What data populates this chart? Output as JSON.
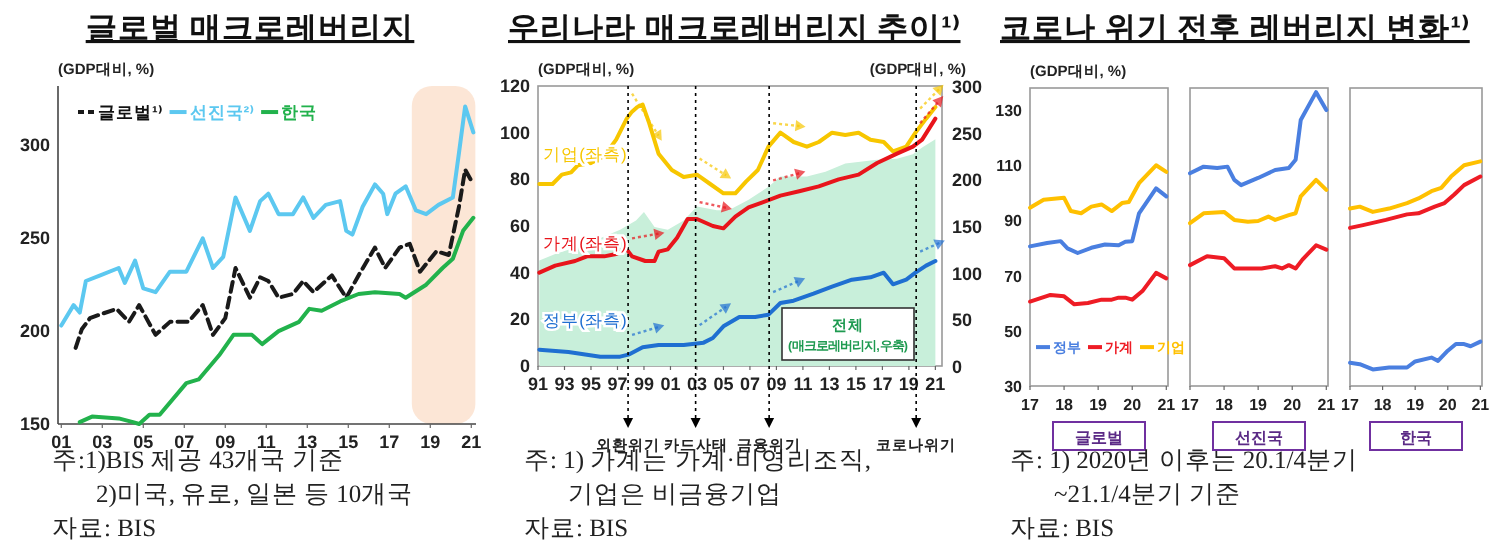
{
  "chart_data": [
    {
      "type": "line",
      "title": "글로벌  매크로레버리지",
      "ylabel": "(GDP대비, %)",
      "legend": "top left",
      "xlim": [
        2000.84,
        2021.23
      ],
      "ylim": [
        150,
        332
      ],
      "xticks": [
        {
          "value": 2001,
          "label": "01"
        },
        {
          "value": 2003,
          "label": "03"
        },
        {
          "value": 2005,
          "label": "05"
        },
        {
          "value": 2007,
          "label": "07"
        },
        {
          "value": 2009,
          "label": "09"
        },
        {
          "value": 2011,
          "label": "11"
        },
        {
          "value": 2013,
          "label": "13"
        },
        {
          "value": 2015,
          "label": "15"
        },
        {
          "value": 2017,
          "label": "17"
        },
        {
          "value": 2019,
          "label": "19"
        },
        {
          "value": 2021,
          "label": "21"
        }
      ],
      "yticks": [
        150,
        200,
        250,
        300
      ],
      "bands": [
        {
          "axis": "x",
          "from": 2018.1,
          "to": 2021.2,
          "color": "#fbe0cc"
        }
      ],
      "series": [
        {
          "name": "글로벌¹⁾",
          "color": "#1a1a1a",
          "line_style": "dashed",
          "x": [
            2001.7,
            2002,
            2002.4,
            2002.9,
            2003.7,
            2004.3,
            2004.8,
            2005.6,
            2006.3,
            2007.2,
            2007.9,
            2008.4,
            2009,
            2009.5,
            2010.2,
            2010.7,
            2011.1,
            2011.6,
            2012.3,
            2012.8,
            2013.3,
            2014.2,
            2014.9,
            2015.5,
            2016.3,
            2016.8,
            2017.5,
            2018,
            2018.5,
            2019.3,
            2019.9,
            2020.4,
            2020.7,
            2021.1
          ],
          "values": [
            191,
            201,
            207,
            209,
            212,
            205,
            214,
            198,
            205,
            205,
            214,
            198,
            207,
            234,
            218,
            229,
            227,
            218,
            220,
            227,
            221,
            230,
            218,
            230,
            245,
            234,
            245,
            247,
            232,
            243,
            241,
            267,
            287,
            279
          ]
        },
        {
          "name": "선진국²⁾",
          "color": "#5cc8f0",
          "x": [
            2001,
            2001.6,
            2001.9,
            2002.2,
            2002.9,
            2003.8,
            2004.1,
            2004.6,
            2005,
            2005.6,
            2006.3,
            2007.1,
            2007.9,
            2008.4,
            2008.9,
            2009.5,
            2010.2,
            2010.7,
            2011.1,
            2011.6,
            2012.3,
            2012.8,
            2013.3,
            2013.9,
            2014.6,
            2014.9,
            2015.2,
            2015.7,
            2016.3,
            2016.7,
            2016.9,
            2017.3,
            2017.8,
            2018.3,
            2018.8,
            2019.4,
            2020.1,
            2020.4,
            2020.7,
            2021.1
          ],
          "values": [
            203,
            214,
            210,
            227,
            230,
            234,
            226,
            238,
            223,
            221,
            232,
            232,
            250,
            234,
            240,
            272,
            254,
            270,
            274,
            263,
            263,
            272,
            261,
            268,
            270,
            254,
            252,
            267,
            279,
            274,
            263,
            274,
            278,
            265,
            263,
            268,
            272,
            296,
            321,
            307
          ]
        },
        {
          "name": "한국",
          "color": "#22b24c",
          "x": [
            2001.9,
            2002.5,
            2003.8,
            2004.5,
            2004.8,
            2005.3,
            2005.8,
            2007.1,
            2007.7,
            2008.7,
            2009.4,
            2010.3,
            2010.8,
            2011.6,
            2012.6,
            2013.1,
            2013.7,
            2014.6,
            2015.5,
            2016.3,
            2017.5,
            2017.8,
            2018.8,
            2019.6,
            2020.1,
            2020.6,
            2021.1
          ],
          "values": [
            151,
            154,
            153,
            151,
            150,
            155,
            155,
            172,
            174,
            187,
            198,
            198,
            193,
            200,
            205,
            212,
            211,
            216,
            220,
            221,
            220,
            218,
            225,
            234,
            239,
            254,
            261
          ]
        }
      ],
      "annotations": [
        "주:1)BIS 제공 43개국 기준",
        "2)미국, 유로, 일본 등 10개국",
        "자료: BIS"
      ]
    },
    {
      "type": "line",
      "title": "우리나라 매크로레버리지 추이¹⁾",
      "ylabel": "(GDP대비, %)",
      "y2label": "(GDP대비, %)",
      "xlim": [
        1991,
        2021.5
      ],
      "ylim": [
        0,
        120
      ],
      "y2lim": [
        0,
        300
      ],
      "xticks": [
        {
          "value": 1991,
          "label": "91"
        },
        {
          "value": 1993,
          "label": "93"
        },
        {
          "value": 1995,
          "label": "95"
        },
        {
          "value": 1997,
          "label": "97"
        },
        {
          "value": 1999,
          "label": "99"
        },
        {
          "value": 2001,
          "label": "01"
        },
        {
          "value": 2003,
          "label": "03"
        },
        {
          "value": 2005,
          "label": "05"
        },
        {
          "value": 2007,
          "label": "07"
        },
        {
          "value": 2009,
          "label": "09"
        },
        {
          "value": 2011,
          "label": "11"
        },
        {
          "value": 2013,
          "label": "13"
        },
        {
          "value": 2015,
          "label": "15"
        },
        {
          "value": 2017,
          "label": "17"
        },
        {
          "value": 2019,
          "label": "19"
        },
        {
          "value": 2021,
          "label": "21"
        }
      ],
      "yticks": [
        0,
        20,
        40,
        60,
        80,
        100,
        120
      ],
      "y2ticks": [
        0,
        50,
        100,
        150,
        200,
        250,
        300
      ],
      "ref_lines": [
        {
          "axis": "x",
          "value": 1997.8,
          "label": "외환위기",
          "color": "#000000",
          "line_style": "dotted"
        },
        {
          "axis": "x",
          "value": 2002.9,
          "label": "카드사태",
          "color": "#000000",
          "line_style": "dotted"
        },
        {
          "axis": "x",
          "value": 2008.45,
          "label": "금융위기",
          "color": "#000000",
          "line_style": "dotted"
        },
        {
          "axis": "x",
          "value": 2019.55,
          "label": "코로나위기",
          "color": "#000000",
          "line_style": "dotted"
        }
      ],
      "series": [
        {
          "name": "전체 (매크로레버리지,우축)",
          "type": "area",
          "axis": "y2",
          "color": "#c8efda",
          "x": [
            1991.1,
            1992.3,
            1994.7,
            1997.2,
            1998.4,
            1999,
            1999.8,
            2000.8,
            2002,
            2003,
            2004.5,
            2005.4,
            2006.9,
            2008.4,
            2009.3,
            2011.3,
            2012.7,
            2014.2,
            2016.6,
            2018.1,
            2019.3,
            2020,
            2021
          ],
          "values": [
            113,
            120,
            131,
            146,
            156,
            165,
            149,
            146,
            156,
            171,
            167,
            167,
            178,
            192,
            203,
            203,
            208,
            217,
            221,
            222,
            227,
            234,
            243
          ]
        },
        {
          "name": "기업(좌측)",
          "color": "#f7c600",
          "x": [
            1991.1,
            1992.1,
            1992.8,
            1993.5,
            1994,
            1995,
            1996,
            1996.9,
            1997.7,
            1998.1,
            1998.5,
            1998.9,
            1999.4,
            2000.1,
            2001.1,
            2002,
            2003,
            2004,
            2005,
            2005.9,
            2006.7,
            2007.6,
            2008.4,
            2009.3,
            2010.3,
            2011.3,
            2012.2,
            2013.2,
            2014.2,
            2015.2,
            2016.1,
            2017.1,
            2017.8,
            2018.8,
            2019.5,
            2020.3,
            2021
          ],
          "values": [
            78,
            78,
            82,
            83,
            86,
            87,
            90,
            97,
            106,
            109,
            111,
            112,
            104,
            91,
            84,
            81,
            82,
            78,
            74,
            74,
            79,
            84,
            94,
            100,
            96,
            94,
            96,
            100,
            99,
            100,
            97,
            96,
            92,
            94,
            100,
            106,
            111
          ]
        },
        {
          "name": "가계(좌측)",
          "color": "#e8141b",
          "x": [
            1991.1,
            1992.3,
            1993.8,
            1994.7,
            1996,
            1996.9,
            1997.7,
            1998.1,
            1999.1,
            1999.8,
            2000.1,
            2000.8,
            2001.5,
            2002.3,
            2003,
            2004.2,
            2005,
            2005.9,
            2006.9,
            2007.9,
            2009.3,
            2010.8,
            2012.2,
            2013.7,
            2015.2,
            2016.6,
            2018.1,
            2019.3,
            2020,
            2021
          ],
          "values": [
            40,
            43,
            45,
            47,
            47,
            48,
            50,
            47,
            45,
            45,
            49,
            50,
            55,
            63,
            63,
            60,
            59,
            64,
            68,
            70,
            73,
            75,
            77,
            80,
            82,
            87,
            91,
            94,
            97,
            106
          ]
        },
        {
          "name": "정부(좌측)",
          "color": "#1f6fd1",
          "x": [
            1991.1,
            1993.3,
            1995.7,
            1997.2,
            1997.9,
            1998.9,
            2000.1,
            2002,
            2003.5,
            2004.2,
            2005,
            2006.2,
            2007.4,
            2008.4,
            2009.3,
            2010.3,
            2011.8,
            2013.2,
            2014.7,
            2016.1,
            2017.1,
            2017.8,
            2018.8,
            2019.5,
            2020.3,
            2021
          ],
          "values": [
            7,
            6,
            4,
            4,
            5,
            8,
            9,
            9,
            10,
            12,
            17,
            21,
            21,
            22,
            27,
            28,
            31,
            34,
            37,
            38,
            40,
            35,
            37,
            40,
            43,
            45
          ]
        }
      ],
      "annotations": [
        "주: 1) 가계는 가계·비영리조직,",
        "기업은 비금융기업",
        "자료: BIS"
      ]
    },
    {
      "type": "line",
      "title": "코로나 위기 전후 레버리지 변화¹⁾",
      "ylabel": "(GDP대비, %)",
      "xlabel": "글로벌",
      "legend": "bottom",
      "xlim": [
        2017,
        2021.05
      ],
      "ylim": [
        30,
        138
      ],
      "xticks": [
        {
          "value": 2017,
          "label": "17"
        },
        {
          "value": 2018,
          "label": "18"
        },
        {
          "value": 2019,
          "label": "19"
        },
        {
          "value": 2020,
          "label": "20"
        },
        {
          "value": 2021,
          "label": "21"
        }
      ],
      "yticks": [
        30,
        50,
        70,
        90,
        110,
        130
      ],
      "series": [
        {
          "name": "정부",
          "color": "#4a7fe0",
          "x": [
            2017,
            2017.5,
            2017.9,
            2018.1,
            2018.4,
            2018.8,
            2019.2,
            2019.6,
            2019.8,
            2020,
            2020.2,
            2020.7,
            2021
          ],
          "values": [
            80.6,
            81.8,
            82.5,
            79.9,
            78.2,
            80.1,
            81.3,
            81,
            82.3,
            82.5,
            92.6,
            101.6,
            98.7
          ]
        },
        {
          "name": "가계",
          "color": "#ee1c25",
          "x": [
            2017,
            2017.6,
            2018,
            2018.3,
            2018.7,
            2019.1,
            2019.4,
            2019.6,
            2019.8,
            2020,
            2020.3,
            2020.7,
            2021
          ],
          "values": [
            60.6,
            63,
            62.5,
            59.6,
            60.1,
            61.3,
            61.3,
            62,
            62,
            61.3,
            64.4,
            71,
            69
          ]
        },
        {
          "name": "기업",
          "color": "#ffc000",
          "x": [
            2017,
            2017.4,
            2018,
            2018.2,
            2018.5,
            2018.8,
            2019.1,
            2019.4,
            2019.7,
            2019.9,
            2020.2,
            2020.7,
            2021
          ],
          "values": [
            94.6,
            97.5,
            98.2,
            93.4,
            92.6,
            95,
            95.8,
            93.4,
            96.3,
            96.7,
            103.5,
            110,
            107.6
          ]
        }
      ],
      "annotations": [
        "주: 1)  2020년 이후는 20.1/4분기",
        "~21.1/4분기 기준",
        "자료: BIS"
      ]
    },
    {
      "type": "line",
      "xlabel": "선진국",
      "tick_labels": "x",
      "xlim": [
        2017,
        2021.05
      ],
      "ylim": [
        30,
        138
      ],
      "xticks": [
        {
          "value": 2017,
          "label": "17"
        },
        {
          "value": 2018,
          "label": "18"
        },
        {
          "value": 2019,
          "label": "19"
        },
        {
          "value": 2020,
          "label": "20"
        },
        {
          "value": 2021,
          "label": "21"
        }
      ],
      "yticks": [
        30,
        50,
        70,
        90,
        110,
        130
      ],
      "series": [
        {
          "color": "#4a7fe0",
          "x": [
            2017,
            2017.4,
            2017.8,
            2018.1,
            2018.3,
            2018.5,
            2019,
            2019.5,
            2019.9,
            2020.1,
            2020.25,
            2020.7,
            2021
          ],
          "values": [
            107.1,
            109.5,
            109,
            109.5,
            104.7,
            102.8,
            105.4,
            108.3,
            109,
            112,
            126.4,
            136.5,
            130
          ]
        },
        {
          "color": "#ee1c25",
          "x": [
            2017,
            2017.5,
            2018,
            2018.3,
            2019.1,
            2019.5,
            2019.7,
            2019.9,
            2020.1,
            2020.3,
            2020.7,
            2021
          ],
          "values": [
            73.8,
            77,
            76.3,
            72.6,
            72.6,
            73.4,
            72.6,
            73.8,
            72.6,
            75.8,
            81,
            79.4
          ]
        },
        {
          "color": "#ffc000",
          "x": [
            2017,
            2017.4,
            2018,
            2018.3,
            2018.7,
            2019,
            2019.3,
            2019.5,
            2019.9,
            2020.1,
            2020.25,
            2020.7,
            2021
          ],
          "values": [
            89,
            92.6,
            93.1,
            90.2,
            89.5,
            89.8,
            91.4,
            90.2,
            91.9,
            92.6,
            98.7,
            104.7,
            101.1
          ]
        }
      ]
    },
    {
      "type": "line",
      "xlabel": "한국",
      "tick_labels": "x",
      "xlim": [
        2017,
        2021.05
      ],
      "ylim": [
        30,
        138
      ],
      "xticks": [
        {
          "value": 2017,
          "label": "17"
        },
        {
          "value": 2018,
          "label": "18"
        },
        {
          "value": 2019,
          "label": "19"
        },
        {
          "value": 2020,
          "label": "20"
        },
        {
          "value": 2021,
          "label": "21"
        }
      ],
      "yticks": [
        30,
        50,
        70,
        90,
        110,
        130
      ],
      "series": [
        {
          "color": "#4a7fe0",
          "x": [
            2017,
            2017.3,
            2017.7,
            2018.2,
            2018.75,
            2019,
            2019.5,
            2019.7,
            2020,
            2020.25,
            2020.5,
            2020.7,
            2021
          ],
          "values": [
            38.4,
            37.9,
            36,
            36.7,
            36.7,
            38.9,
            40.3,
            39.1,
            42.8,
            45.2,
            45.2,
            44.4,
            46.1
          ]
        },
        {
          "color": "#ee1c25",
          "x": [
            2017,
            2017.4,
            2018.1,
            2018.75,
            2019.1,
            2019.6,
            2019.9,
            2020.2,
            2020.5,
            2021
          ],
          "values": [
            87.3,
            88.3,
            90.2,
            92.2,
            92.6,
            95,
            96.3,
            99.4,
            102.8,
            105.9
          ]
        },
        {
          "color": "#ffc000",
          "x": [
            2017,
            2017.3,
            2017.7,
            2018.2,
            2018.75,
            2019.1,
            2019.5,
            2019.8,
            2020.1,
            2020.5,
            2021
          ],
          "values": [
            94.3,
            95,
            93.1,
            94.3,
            96.3,
            98,
            100.6,
            101.8,
            105.9,
            110,
            111.4
          ]
        }
      ]
    }
  ]
}
